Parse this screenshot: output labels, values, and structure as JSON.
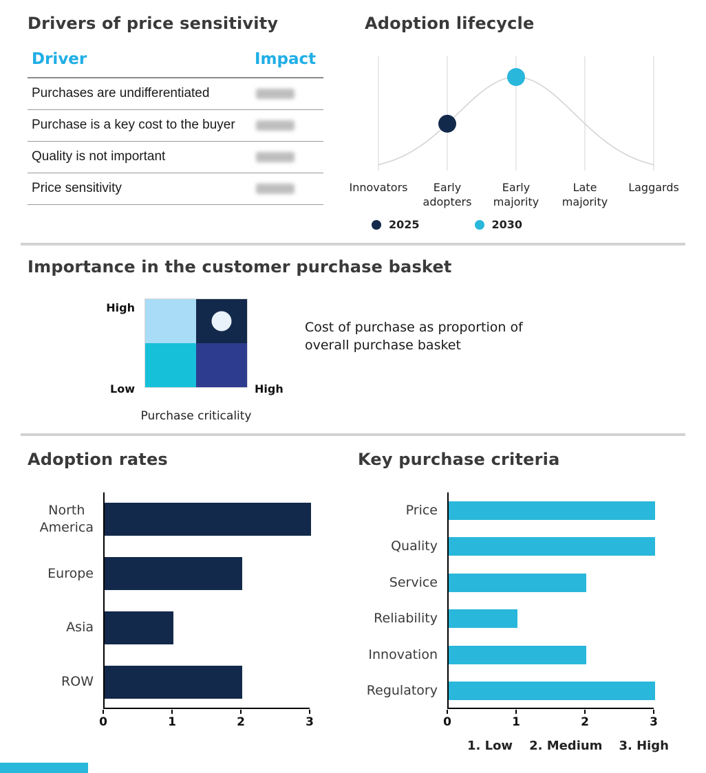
{
  "palette": {
    "navy": "#13294B",
    "cyan": "#29B7DB",
    "header_cyan": "#1FAEE6",
    "light_blue": "#A9DCF6",
    "teal": "#17C0D9",
    "indigo": "#2E3C90",
    "marker_white": "#E9F1FA",
    "curve_gray": "#D4D4D4",
    "grid_gray": "#DDDDDD"
  },
  "section_titles": {
    "drivers": "Drivers of price sensitivity",
    "lifecycle": "Adoption lifecycle",
    "basket": "Importance in the customer purchase basket",
    "adoption_rates": "Adoption rates",
    "criteria": "Key purchase criteria"
  },
  "drivers_table": {
    "title": "Drivers of price sensitivity",
    "columns": {
      "driver": "Driver",
      "impact": "Impact"
    },
    "rows": [
      {
        "driver": "Purchases are undifferentiated",
        "impact_redacted": true
      },
      {
        "driver": "Purchase is a key cost to the buyer",
        "impact_redacted": true
      },
      {
        "driver": "Quality is not important",
        "impact_redacted": true
      },
      {
        "driver": "Price sensitivity",
        "impact_redacted": true
      }
    ]
  },
  "purchase_basket": {
    "title": "Importance in the customer purchase basket",
    "y_axis_top": "High",
    "y_axis_bottom": "Low",
    "x_axis_right": "High",
    "x_axis_label": "Purchase criticality",
    "description": "Cost of purchase as proportion of\noverall purchase basket"
  },
  "chart_data": [
    {
      "type": "line",
      "title": "Adoption lifecycle",
      "x": [
        "Innovators",
        "Early\nadopters",
        "Early\nmajority",
        "Late\nmajority",
        "Laggards"
      ],
      "curve": "gray bell-shaped adoption curve, peak at Early majority",
      "grid": "vertical gridlines at each category",
      "markers": [
        {
          "label": "2025",
          "x_index": 1,
          "color": "#13294B"
        },
        {
          "label": "2030",
          "x_index": 2,
          "color": "#29B7DB"
        }
      ],
      "legend": [
        {
          "label": "2025",
          "color": "#13294B"
        },
        {
          "label": "2030",
          "color": "#29B7DB"
        }
      ],
      "legend_position": "bottom"
    },
    {
      "type": "heatmap",
      "title": "Importance in the customer purchase basket",
      "quadrants": [
        {
          "position": "top-left",
          "color": "#A9DCF6",
          "marker": false
        },
        {
          "position": "top-right",
          "color": "#13294B",
          "marker": true
        },
        {
          "position": "bottom-left",
          "color": "#17C0D9",
          "marker": false
        },
        {
          "position": "bottom-right",
          "color": "#2E3C90",
          "marker": false
        }
      ],
      "ylabels": [
        "High",
        "Low"
      ],
      "xlabel_right": "High",
      "xlabel": "Purchase criticality",
      "annotation": "Cost of purchase as proportion of overall purchase basket"
    },
    {
      "type": "bar",
      "title": "Adoption rates",
      "orientation": "horizontal",
      "categories": [
        "North\nAmerica",
        "Europe",
        "Asia",
        "ROW"
      ],
      "values": [
        3,
        2,
        1,
        2
      ],
      "xlim": [
        0,
        3
      ],
      "xticks": [
        0,
        1,
        2,
        3
      ],
      "bar_color": "#13294B",
      "grid": false
    },
    {
      "type": "bar",
      "title": "Key purchase criteria",
      "orientation": "horizontal",
      "categories": [
        "Price",
        "Quality",
        "Service",
        "Reliability",
        "Innovation",
        "Regulatory"
      ],
      "values": [
        3,
        3,
        2,
        1,
        2,
        3
      ],
      "xlim": [
        0,
        3
      ],
      "xticks": [
        0,
        1,
        2,
        3
      ],
      "bar_color": "#29B7DB",
      "grid": false,
      "note_items": [
        "1. Low",
        "2. Medium",
        "3. High"
      ]
    }
  ]
}
